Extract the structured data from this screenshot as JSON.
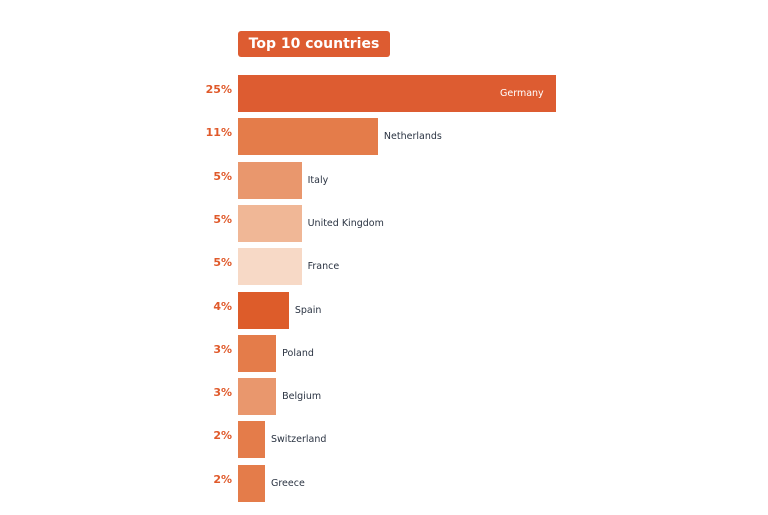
{
  "chart_data": {
    "type": "bar",
    "orientation": "horizontal",
    "title": "Top 10 countries",
    "categories": [
      "Germany",
      "Netherlands",
      "Italy",
      "United Kingdom",
      "France",
      "Spain",
      "Poland",
      "Belgium",
      "Switzerland",
      "Greece"
    ],
    "values": [
      25,
      11,
      5,
      5,
      5,
      4,
      3,
      3,
      2,
      2
    ],
    "value_labels": [
      "25%",
      "11%",
      "5%",
      "5%",
      "5%",
      "4%",
      "3%",
      "3%",
      "2%",
      "2%"
    ],
    "unit": "%",
    "colors": [
      "#DD5C31",
      "#E47C4A",
      "#E9976D",
      "#F0B796",
      "#F7D9C6",
      "#DD5C2A",
      "#E47C4A",
      "#E9976D",
      "#E47C4A",
      "#E47C4A"
    ],
    "grid": false,
    "legend": "none"
  }
}
